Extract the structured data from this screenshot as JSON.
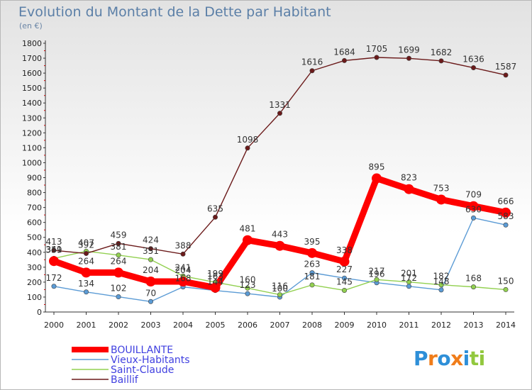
{
  "chart_data": {
    "type": "line",
    "title": "Evolution du Montant de la Dette par Habitant",
    "subtitle": "(en €)",
    "x": [
      "2000",
      "2001",
      "2002",
      "2003",
      "2004",
      "2005",
      "2006",
      "2007",
      "2008",
      "2009",
      "2010",
      "2011",
      "2012",
      "2013",
      "2014"
    ],
    "ylim": [
      0,
      1800
    ],
    "yticks": [
      0,
      100,
      200,
      300,
      400,
      500,
      600,
      700,
      800,
      900,
      1000,
      1100,
      1200,
      1300,
      1400,
      1500,
      1600,
      1700,
      1800
    ],
    "grid": false,
    "legend": "bottom-left",
    "series": [
      {
        "name": "BOUILLANTE",
        "color": "#ff0000",
        "values": [
          341,
          264,
          264,
          204,
          204,
          163,
          481,
          443,
          395,
          338,
          895,
          823,
          753,
          709,
          666
        ]
      },
      {
        "name": "Vieux-Habitants",
        "color": "#5b9bd5",
        "values": [
          172,
          134,
          102,
          70,
          168,
          144,
          123,
          100,
          263,
          227,
          196,
          172,
          148,
          630,
          583
        ]
      },
      {
        "name": "Saint-Claude",
        "color": "#92d050",
        "values": [
          359,
          407,
          381,
          351,
          241,
          199,
          160,
          116,
          181,
          145,
          217,
          201,
          182,
          168,
          150
        ]
      },
      {
        "name": "Baillif",
        "color": "#6b1a1a",
        "values": [
          413,
          392,
          459,
          424,
          388,
          635,
          1098,
          1331,
          1616,
          1684,
          1705,
          1699,
          1682,
          1636,
          1587
        ]
      }
    ]
  },
  "logo": {
    "letters": [
      "P",
      "r",
      "o",
      "x",
      "i",
      "t",
      "i"
    ],
    "colors": [
      "#2e8fd8",
      "#f07d1a",
      "#2e8fd8",
      "#f07d1a",
      "#2e8fd8",
      "#92c83e",
      "#92c83e"
    ]
  }
}
